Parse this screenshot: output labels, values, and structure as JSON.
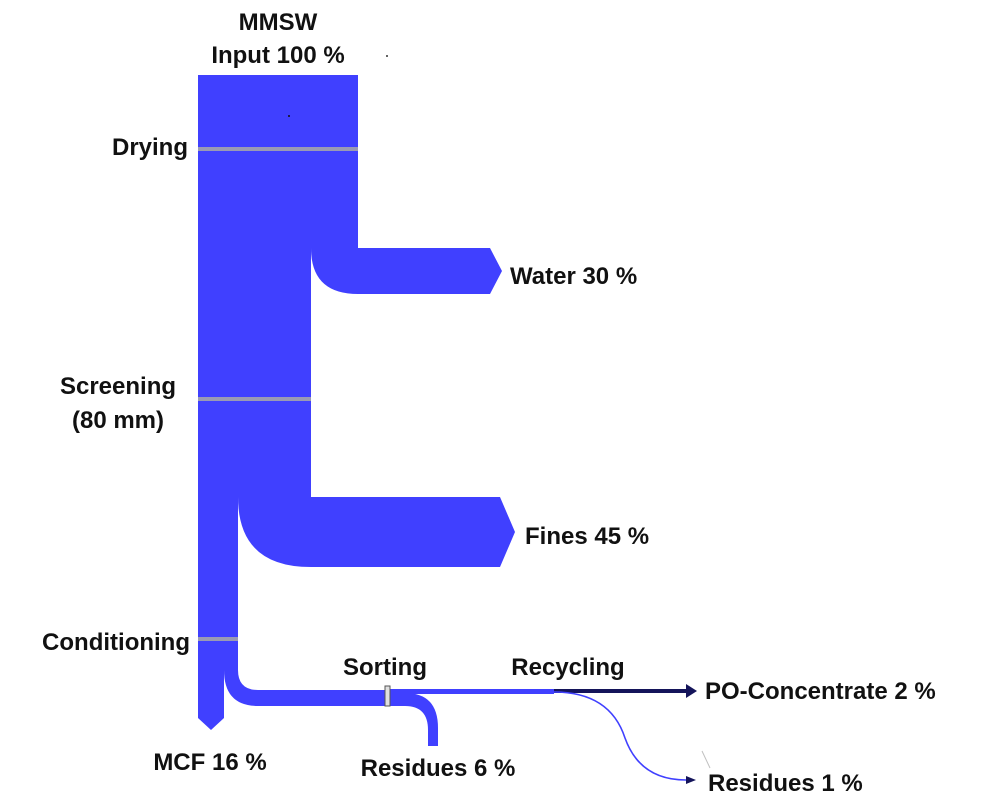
{
  "colors": {
    "flow": "#4040ff",
    "flow_dark": "#14145a",
    "flow_thin": "#6a6aff",
    "separator": "#9a9ab4",
    "text": "#111111"
  },
  "labels": {
    "input_line1": "MMSW",
    "input_line2": "Input 100 %",
    "drying": "Drying",
    "screening_line1": "Screening",
    "screening_line2": "(80 mm)",
    "conditioning": "Conditioning",
    "sorting": "Sorting",
    "recycling": "Recycling",
    "water": "Water 30 %",
    "fines": "Fines 45 %",
    "mcf": "MCF 16 %",
    "residues_sorting": "Residues 6 %",
    "po_concentrate": "PO-Concentrate 2 %",
    "residues_recycling": "Residues 1 %"
  },
  "flows": [
    {
      "from": "MMSW Input",
      "to": "Drying",
      "value": 100
    },
    {
      "from": "Drying",
      "to": "Water",
      "value": 30
    },
    {
      "from": "Drying",
      "to": "Screening",
      "value": 70
    },
    {
      "from": "Screening",
      "to": "Fines",
      "value": 45
    },
    {
      "from": "Screening",
      "to": "Conditioning",
      "value": 25
    },
    {
      "from": "Conditioning",
      "to": "MCF",
      "value": 16
    },
    {
      "from": "Conditioning",
      "to": "Sorting",
      "value": 9
    },
    {
      "from": "Sorting",
      "to": "Residues",
      "value": 6
    },
    {
      "from": "Sorting",
      "to": "Recycling",
      "value": 3
    },
    {
      "from": "Recycling",
      "to": "PO-Concentrate",
      "value": 2
    },
    {
      "from": "Recycling",
      "to": "Residues",
      "value": 1
    }
  ]
}
